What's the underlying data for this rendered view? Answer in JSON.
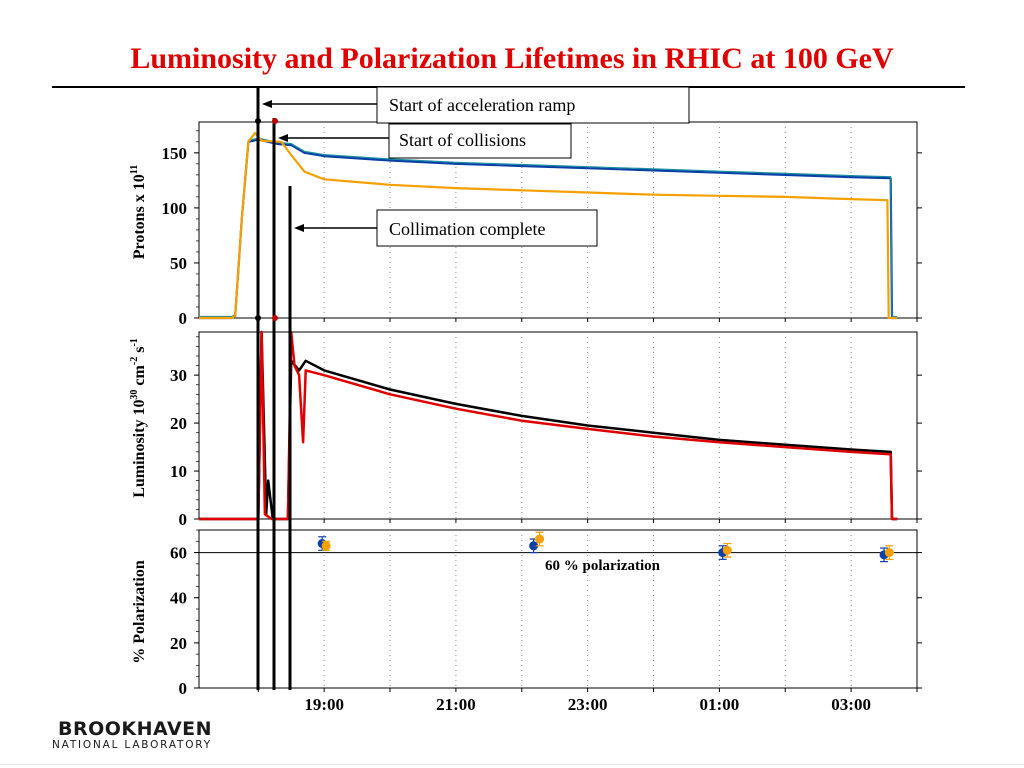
{
  "title": "Luminosity and Polarization Lifetimes in RHIC at 100 GeV",
  "logo": {
    "main": "BROOKHAVEN",
    "sub": "NATIONAL LABORATORY"
  },
  "colors": {
    "title": "#e00000",
    "blue_beam": "#0a3fa8",
    "teal": "#1a8fa0",
    "yellow_beam": "#f5a000",
    "lumi_black": "#000000",
    "lumi_red": "#e00000"
  },
  "annotations": {
    "ramp": "Start of acceleration ramp",
    "collisions": "Start of collisions",
    "collimation": "Collimation complete",
    "pol_ref": "60 % polarization"
  },
  "chart_data": [
    {
      "type": "line",
      "panel": "protons",
      "ylabel_main": "Protons x 10",
      "ylabel_sup": "11",
      "ylim": [
        0,
        178
      ],
      "yticks": [
        "0",
        "50",
        "100",
        "150"
      ],
      "xlim": [
        17.1,
        28.0
      ],
      "series": [
        {
          "color": "blue",
          "points": [
            [
              17.1,
              0
            ],
            [
              17.6,
              0
            ],
            [
              17.65,
              2
            ],
            [
              17.75,
              90
            ],
            [
              17.85,
              160
            ],
            [
              18.0,
              162
            ],
            [
              18.3,
              158
            ],
            [
              18.5,
              157
            ],
            [
              18.7,
              150
            ],
            [
              19.0,
              147
            ],
            [
              20.0,
              143
            ],
            [
              21.0,
              140
            ],
            [
              22.0,
              138
            ],
            [
              23.0,
              136
            ],
            [
              24.0,
              134
            ],
            [
              25.0,
              132
            ],
            [
              26.0,
              130
            ],
            [
              27.0,
              128
            ],
            [
              27.6,
              127
            ],
            [
              27.62,
              0
            ],
            [
              27.7,
              0
            ]
          ]
        },
        {
          "color": "yellow",
          "points": [
            [
              17.1,
              0
            ],
            [
              17.6,
              0
            ],
            [
              17.65,
              2
            ],
            [
              17.75,
              90
            ],
            [
              17.85,
              160
            ],
            [
              17.95,
              168
            ],
            [
              18.05,
              161
            ],
            [
              18.35,
              160
            ],
            [
              18.5,
              148
            ],
            [
              18.7,
              133
            ],
            [
              19.0,
              126
            ],
            [
              20.0,
              121
            ],
            [
              21.0,
              118
            ],
            [
              22.0,
              116
            ],
            [
              23.0,
              114
            ],
            [
              24.0,
              112
            ],
            [
              25.0,
              111
            ],
            [
              26.0,
              110
            ],
            [
              27.0,
              108
            ],
            [
              27.55,
              107
            ],
            [
              27.57,
              0
            ],
            [
              27.7,
              0
            ]
          ]
        }
      ]
    },
    {
      "type": "line",
      "panel": "luminosity",
      "ylabel_main": "Luminosity 10",
      "ylabel_sup1": "30",
      "ylabel_mid": " cm",
      "ylabel_sup2": "-2",
      "ylabel_mid2": " s",
      "ylabel_sup3": "-1",
      "ylim": [
        0,
        39
      ],
      "yticks": [
        "0",
        "10",
        "20",
        "30"
      ],
      "xlim": [
        17.1,
        28.0
      ],
      "series": [
        {
          "color": "black",
          "points": [
            [
              17.1,
              0
            ],
            [
              18.0,
              0
            ],
            [
              18.05,
              39
            ],
            [
              18.12,
              1
            ],
            [
              18.15,
              8
            ],
            [
              18.22,
              0
            ],
            [
              18.45,
              0
            ],
            [
              18.5,
              33
            ],
            [
              18.62,
              31
            ],
            [
              18.72,
              33
            ],
            [
              19.0,
              31
            ],
            [
              20.0,
              27
            ],
            [
              21.0,
              24
            ],
            [
              22.0,
              21.5
            ],
            [
              23.0,
              19.5
            ],
            [
              24.0,
              18
            ],
            [
              25.0,
              16.5
            ],
            [
              26.0,
              15.5
            ],
            [
              27.0,
              14.5
            ],
            [
              27.6,
              14
            ],
            [
              27.62,
              0
            ],
            [
              27.7,
              0
            ]
          ]
        },
        {
          "color": "red",
          "points": [
            [
              17.1,
              0
            ],
            [
              18.0,
              0
            ],
            [
              18.05,
              39
            ],
            [
              18.1,
              1
            ],
            [
              18.2,
              0
            ],
            [
              18.45,
              0
            ],
            [
              18.5,
              39
            ],
            [
              18.55,
              32
            ],
            [
              18.62,
              30
            ],
            [
              18.68,
              16
            ],
            [
              18.72,
              31
            ],
            [
              19.0,
              30
            ],
            [
              20.0,
              26
            ],
            [
              21.0,
              23
            ],
            [
              22.0,
              20.5
            ],
            [
              23.0,
              18.8
            ],
            [
              24.0,
              17.2
            ],
            [
              25.0,
              16
            ],
            [
              26.0,
              15
            ],
            [
              27.0,
              14
            ],
            [
              27.6,
              13.5
            ],
            [
              27.62,
              0
            ],
            [
              27.7,
              0
            ]
          ]
        }
      ]
    },
    {
      "type": "scatter",
      "panel": "polarization",
      "ylabel_main": "% Polarization",
      "ylim": [
        0,
        70
      ],
      "yticks": [
        "0",
        "20",
        "40",
        "60"
      ],
      "xlim": [
        17.1,
        28.0
      ],
      "xticks": [
        {
          "value": 19,
          "label": "19:00"
        },
        {
          "value": 21,
          "label": "21:00"
        },
        {
          "value": 23,
          "label": "23:00"
        },
        {
          "value": 25,
          "label": "01:00"
        },
        {
          "value": 27,
          "label": "03:00"
        }
      ],
      "reference_y": 60,
      "series": [
        {
          "color": "blue",
          "points": [
            [
              18.97,
              64,
              3
            ],
            [
              22.18,
              63,
              3
            ],
            [
              25.05,
              60,
              3
            ],
            [
              27.5,
              59,
              3
            ]
          ]
        },
        {
          "color": "yellow",
          "points": [
            [
              19.03,
              63,
              2
            ],
            [
              22.27,
              66,
              3
            ],
            [
              25.12,
              61,
              3
            ],
            [
              27.58,
              60,
              3
            ]
          ]
        }
      ]
    }
  ]
}
